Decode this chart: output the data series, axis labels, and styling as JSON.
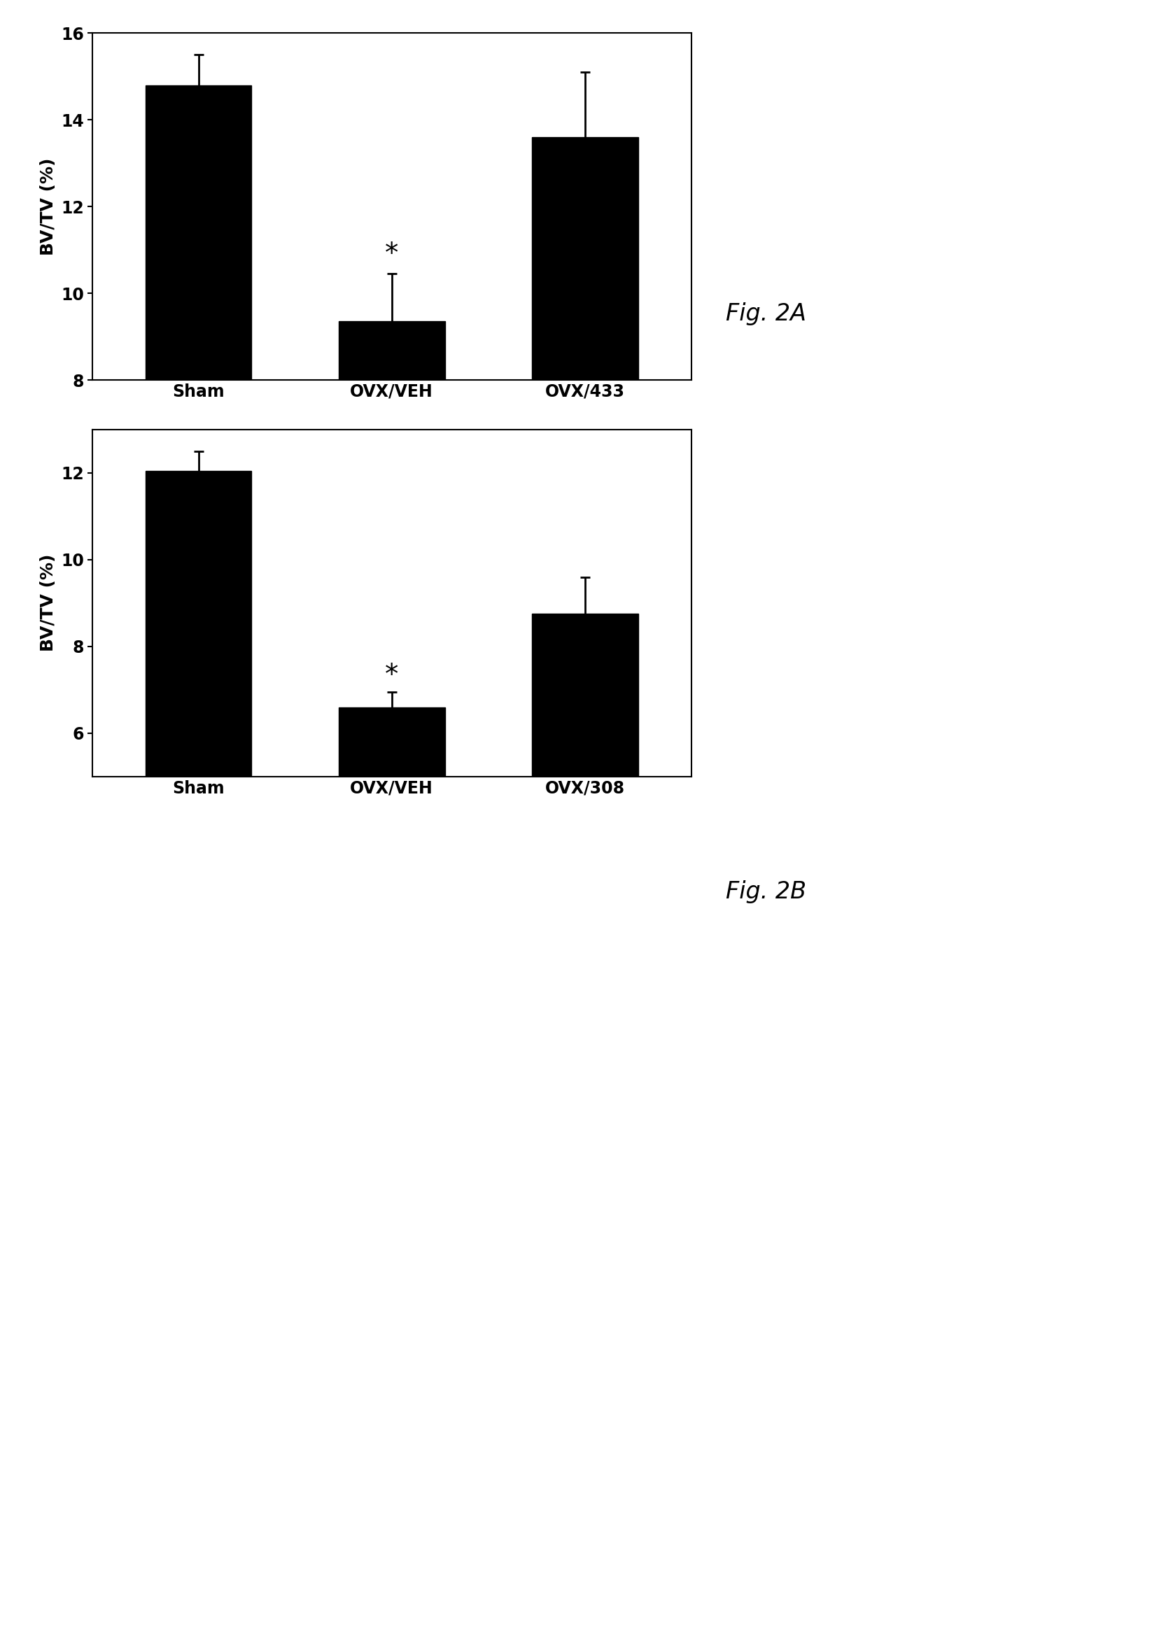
{
  "fig2A": {
    "categories": [
      "Sham",
      "OVX/VEH",
      "OVX/433"
    ],
    "values": [
      14.8,
      9.35,
      13.6
    ],
    "errors": [
      0.7,
      1.1,
      1.5
    ],
    "ylim": [
      8,
      16
    ],
    "yticks": [
      8,
      10,
      12,
      14,
      16
    ],
    "ylabel": "BV/TV (%)",
    "sig_bar": [
      1
    ],
    "fig_label": "Fig. 2A"
  },
  "fig2B": {
    "categories": [
      "Sham",
      "OVX/VEH",
      "OVX/308"
    ],
    "values": [
      12.05,
      6.6,
      8.75
    ],
    "errors": [
      0.45,
      0.35,
      0.85
    ],
    "ylim": [
      5,
      13
    ],
    "yticks": [
      6,
      8,
      10,
      12
    ],
    "ylabel": "BV/TV (%)",
    "sig_bar": [
      1
    ],
    "fig_label": "Fig. 2B"
  },
  "bar_color": "#000000",
  "bar_width": 0.55,
  "background_color": "#ffffff",
  "figure_bg": "#ffffff",
  "label_fontsize": 18,
  "tick_fontsize": 17,
  "fig_label_fontsize": 24,
  "errorbar_color": "#000000",
  "errorbar_lw": 2,
  "errorbar_capsize": 5,
  "errorbar_capthick": 2
}
